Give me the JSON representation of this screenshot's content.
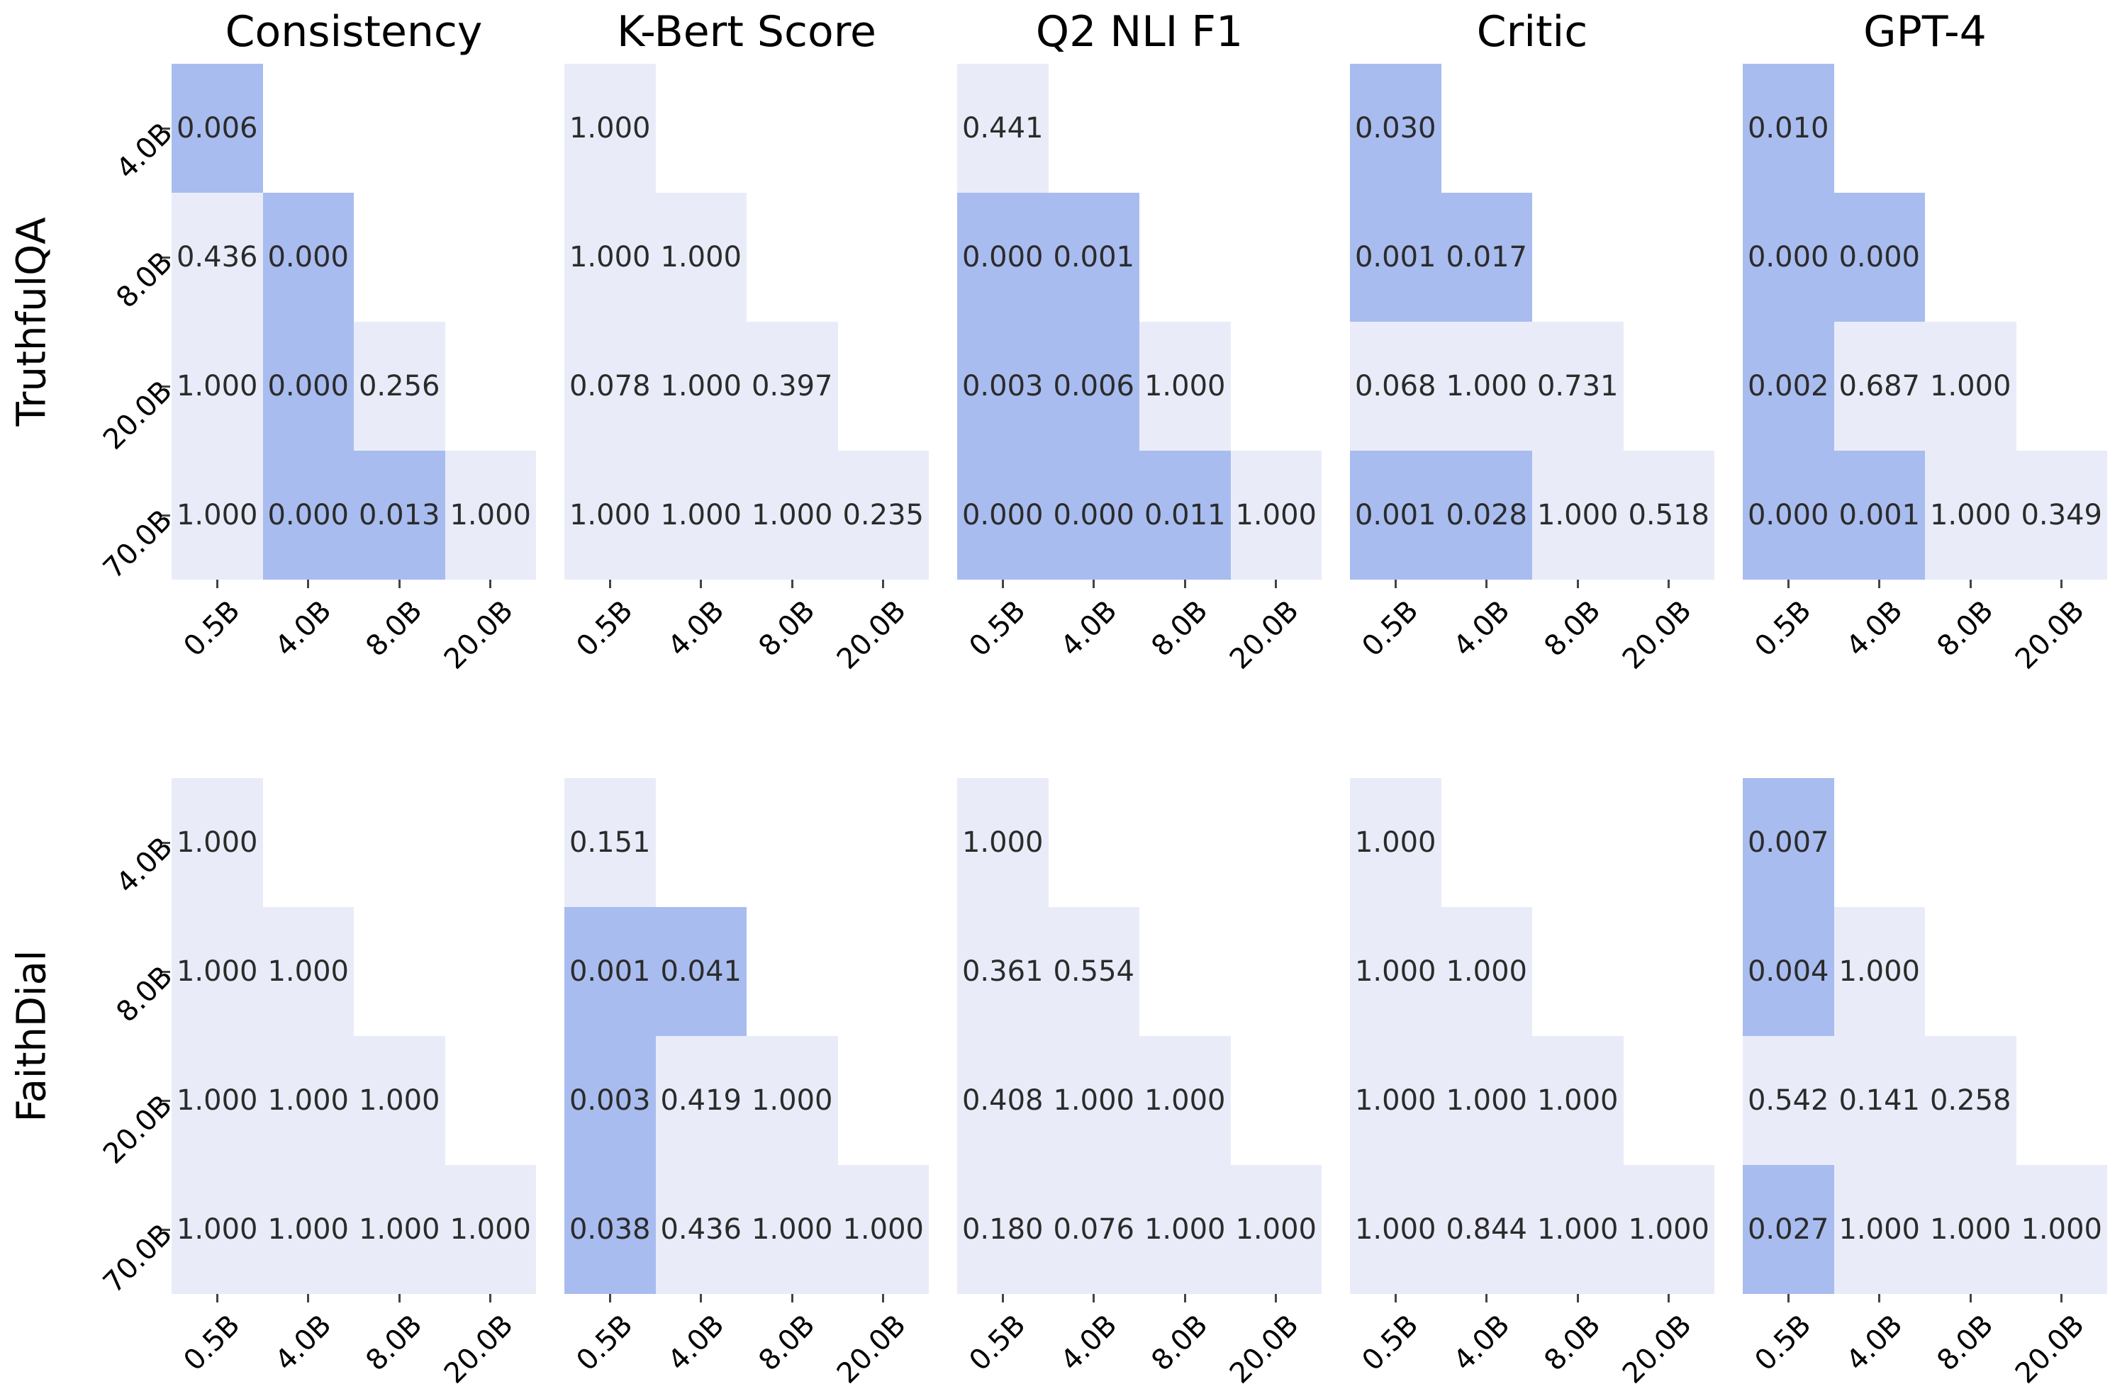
{
  "figure": {
    "columns": [
      "Consistency",
      "K-Bert Score",
      "Q2 NLI F1",
      "Critic",
      "GPT-4"
    ],
    "rows": [
      "TruthfulQA",
      "FaithDial"
    ],
    "x_ticks": [
      "0.5B",
      "4.0B",
      "8.0B",
      "20.0B"
    ],
    "y_ticks": [
      "4.0B",
      "8.0B",
      "20.0B",
      "70.0B"
    ],
    "sig_threshold": 0.05,
    "colors": {
      "significant": "#a8bcef",
      "not_significant": "#e9ecf8",
      "cell_text": "#2b2b2b",
      "label_text": "#000000"
    }
  },
  "chart_data": [
    {
      "type": "heatmap",
      "dataset": "TruthfulQA",
      "metric": "Consistency",
      "x": [
        "0.5B",
        "4.0B",
        "8.0B",
        "20.0B"
      ],
      "y": [
        "4.0B",
        "8.0B",
        "20.0B",
        "70.0B"
      ],
      "values": [
        [
          "0.006"
        ],
        [
          "0.436",
          "0.000"
        ],
        [
          "1.000",
          "0.000",
          "0.256"
        ],
        [
          "1.000",
          "0.000",
          "0.013",
          "1.000"
        ]
      ]
    },
    {
      "type": "heatmap",
      "dataset": "TruthfulQA",
      "metric": "K-Bert Score",
      "x": [
        "0.5B",
        "4.0B",
        "8.0B",
        "20.0B"
      ],
      "y": [
        "4.0B",
        "8.0B",
        "20.0B",
        "70.0B"
      ],
      "values": [
        [
          "1.000"
        ],
        [
          "1.000",
          "1.000"
        ],
        [
          "0.078",
          "1.000",
          "0.397"
        ],
        [
          "1.000",
          "1.000",
          "1.000",
          "0.235"
        ]
      ]
    },
    {
      "type": "heatmap",
      "dataset": "TruthfulQA",
      "metric": "Q2 NLI F1",
      "x": [
        "0.5B",
        "4.0B",
        "8.0B",
        "20.0B"
      ],
      "y": [
        "4.0B",
        "8.0B",
        "20.0B",
        "70.0B"
      ],
      "values": [
        [
          "0.441"
        ],
        [
          "0.000",
          "0.001"
        ],
        [
          "0.003",
          "0.006",
          "1.000"
        ],
        [
          "0.000",
          "0.000",
          "0.011",
          "1.000"
        ]
      ]
    },
    {
      "type": "heatmap",
      "dataset": "TruthfulQA",
      "metric": "Critic",
      "x": [
        "0.5B",
        "4.0B",
        "8.0B",
        "20.0B"
      ],
      "y": [
        "4.0B",
        "8.0B",
        "20.0B",
        "70.0B"
      ],
      "values": [
        [
          "0.030"
        ],
        [
          "0.001",
          "0.017"
        ],
        [
          "0.068",
          "1.000",
          "0.731"
        ],
        [
          "0.001",
          "0.028",
          "1.000",
          "0.518"
        ]
      ]
    },
    {
      "type": "heatmap",
      "dataset": "TruthfulQA",
      "metric": "GPT-4",
      "x": [
        "0.5B",
        "4.0B",
        "8.0B",
        "20.0B"
      ],
      "y": [
        "4.0B",
        "8.0B",
        "20.0B",
        "70.0B"
      ],
      "values": [
        [
          "0.010"
        ],
        [
          "0.000",
          "0.000"
        ],
        [
          "0.002",
          "0.687",
          "1.000"
        ],
        [
          "0.000",
          "0.001",
          "1.000",
          "0.349"
        ]
      ]
    },
    {
      "type": "heatmap",
      "dataset": "FaithDial",
      "metric": "Consistency",
      "x": [
        "0.5B",
        "4.0B",
        "8.0B",
        "20.0B"
      ],
      "y": [
        "4.0B",
        "8.0B",
        "20.0B",
        "70.0B"
      ],
      "values": [
        [
          "1.000"
        ],
        [
          "1.000",
          "1.000"
        ],
        [
          "1.000",
          "1.000",
          "1.000"
        ],
        [
          "1.000",
          "1.000",
          "1.000",
          "1.000"
        ]
      ]
    },
    {
      "type": "heatmap",
      "dataset": "FaithDial",
      "metric": "K-Bert Score",
      "x": [
        "0.5B",
        "4.0B",
        "8.0B",
        "20.0B"
      ],
      "y": [
        "4.0B",
        "8.0B",
        "20.0B",
        "70.0B"
      ],
      "values": [
        [
          "0.151"
        ],
        [
          "0.001",
          "0.041"
        ],
        [
          "0.003",
          "0.419",
          "1.000"
        ],
        [
          "0.038",
          "0.436",
          "1.000",
          "1.000"
        ]
      ]
    },
    {
      "type": "heatmap",
      "dataset": "FaithDial",
      "metric": "Q2 NLI F1",
      "x": [
        "0.5B",
        "4.0B",
        "8.0B",
        "20.0B"
      ],
      "y": [
        "4.0B",
        "8.0B",
        "20.0B",
        "70.0B"
      ],
      "values": [
        [
          "1.000"
        ],
        [
          "0.361",
          "0.554"
        ],
        [
          "0.408",
          "1.000",
          "1.000"
        ],
        [
          "0.180",
          "0.076",
          "1.000",
          "1.000"
        ]
      ]
    },
    {
      "type": "heatmap",
      "dataset": "FaithDial",
      "metric": "Critic",
      "x": [
        "0.5B",
        "4.0B",
        "8.0B",
        "20.0B"
      ],
      "y": [
        "4.0B",
        "8.0B",
        "20.0B",
        "70.0B"
      ],
      "values": [
        [
          "1.000"
        ],
        [
          "1.000",
          "1.000"
        ],
        [
          "1.000",
          "1.000",
          "1.000"
        ],
        [
          "1.000",
          "0.844",
          "1.000",
          "1.000"
        ]
      ]
    },
    {
      "type": "heatmap",
      "dataset": "FaithDial",
      "metric": "GPT-4",
      "x": [
        "0.5B",
        "4.0B",
        "8.0B",
        "20.0B"
      ],
      "y": [
        "4.0B",
        "8.0B",
        "20.0B",
        "70.0B"
      ],
      "values": [
        [
          "0.007"
        ],
        [
          "0.004",
          "1.000"
        ],
        [
          "0.542",
          "0.141",
          "0.258"
        ],
        [
          "0.027",
          "1.000",
          "1.000",
          "1.000"
        ]
      ]
    }
  ]
}
